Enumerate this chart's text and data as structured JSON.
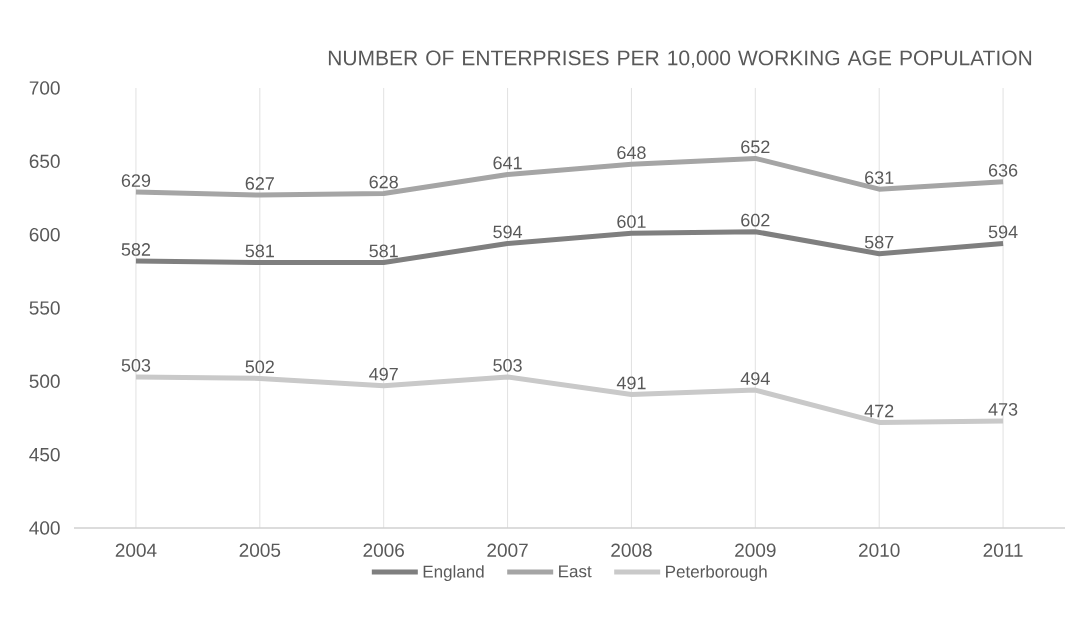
{
  "chart_data": {
    "type": "line",
    "title": "NUMBER OF ENTERPRISES PER 10,000 WORKING AGE POPULATION",
    "categories": [
      "2004",
      "2005",
      "2006",
      "2007",
      "2008",
      "2009",
      "2010",
      "2011"
    ],
    "series": [
      {
        "name": "England",
        "color": "#7f7f7f",
        "values": [
          582,
          581,
          581,
          594,
          601,
          602,
          587,
          594
        ]
      },
      {
        "name": "East",
        "color": "#a5a5a5",
        "values": [
          629,
          627,
          628,
          641,
          648,
          652,
          631,
          636
        ]
      },
      {
        "name": "Peterborough",
        "color": "#c9c9c9",
        "values": [
          503,
          502,
          497,
          503,
          491,
          494,
          472,
          473
        ]
      }
    ],
    "ylim": [
      400,
      700
    ],
    "yticks": [
      400,
      450,
      500,
      550,
      600,
      650,
      700
    ],
    "grid": "x",
    "legend": "bottom",
    "data_labels": true
  }
}
